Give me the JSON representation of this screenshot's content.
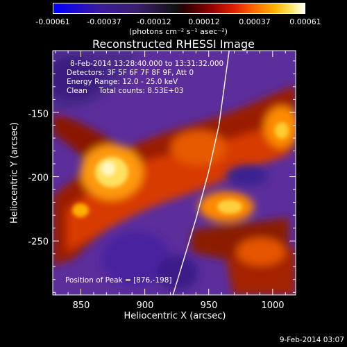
{
  "colorbar": {
    "ticks": [
      "-0.00061",
      "-0.00037",
      "-0.00012",
      "0.00012",
      "0.00037",
      "0.00061"
    ],
    "unit_label": "(photons cm⁻² s⁻¹ asec⁻²)"
  },
  "chart_data": {
    "type": "heatmap",
    "title": "Reconstructed RHESSI Image",
    "xlabel": "Heliocentric X (arcsec)",
    "ylabel": "Heliocentric Y (arcsec)",
    "xlim": [
      828,
      1018
    ],
    "ylim": [
      -292,
      -102
    ],
    "xticks": [
      850,
      900,
      950,
      1000
    ],
    "yticks": [
      -150,
      -200,
      -250
    ],
    "zlim": [
      -0.00061,
      0.00061
    ],
    "colormap": "red-temperature with negative values in blue/purple",
    "limb_curve": {
      "x": [
        922,
        930,
        940,
        950,
        958,
        966
      ],
      "y": [
        -292,
        -266,
        -233,
        -196,
        -160,
        -102
      ]
    },
    "peak": {
      "x": 876,
      "y": -198
    },
    "annotations": [
      "8-Feb-2014 13:28:40.000 to 13:31:32.000",
      "Detectors: 3F 5F 6F 7F 8F 9F, Att 0",
      "Energy Range: 12.0 - 25.0 keV",
      "Clean     Total counts: 8.53E+03"
    ],
    "peak_label": "Position of Peak = [876,-198]"
  },
  "footer": {
    "timestamp": "9-Feb-2014 03:07"
  },
  "colors": {
    "background": "#000000",
    "axis": "#ffffff"
  }
}
